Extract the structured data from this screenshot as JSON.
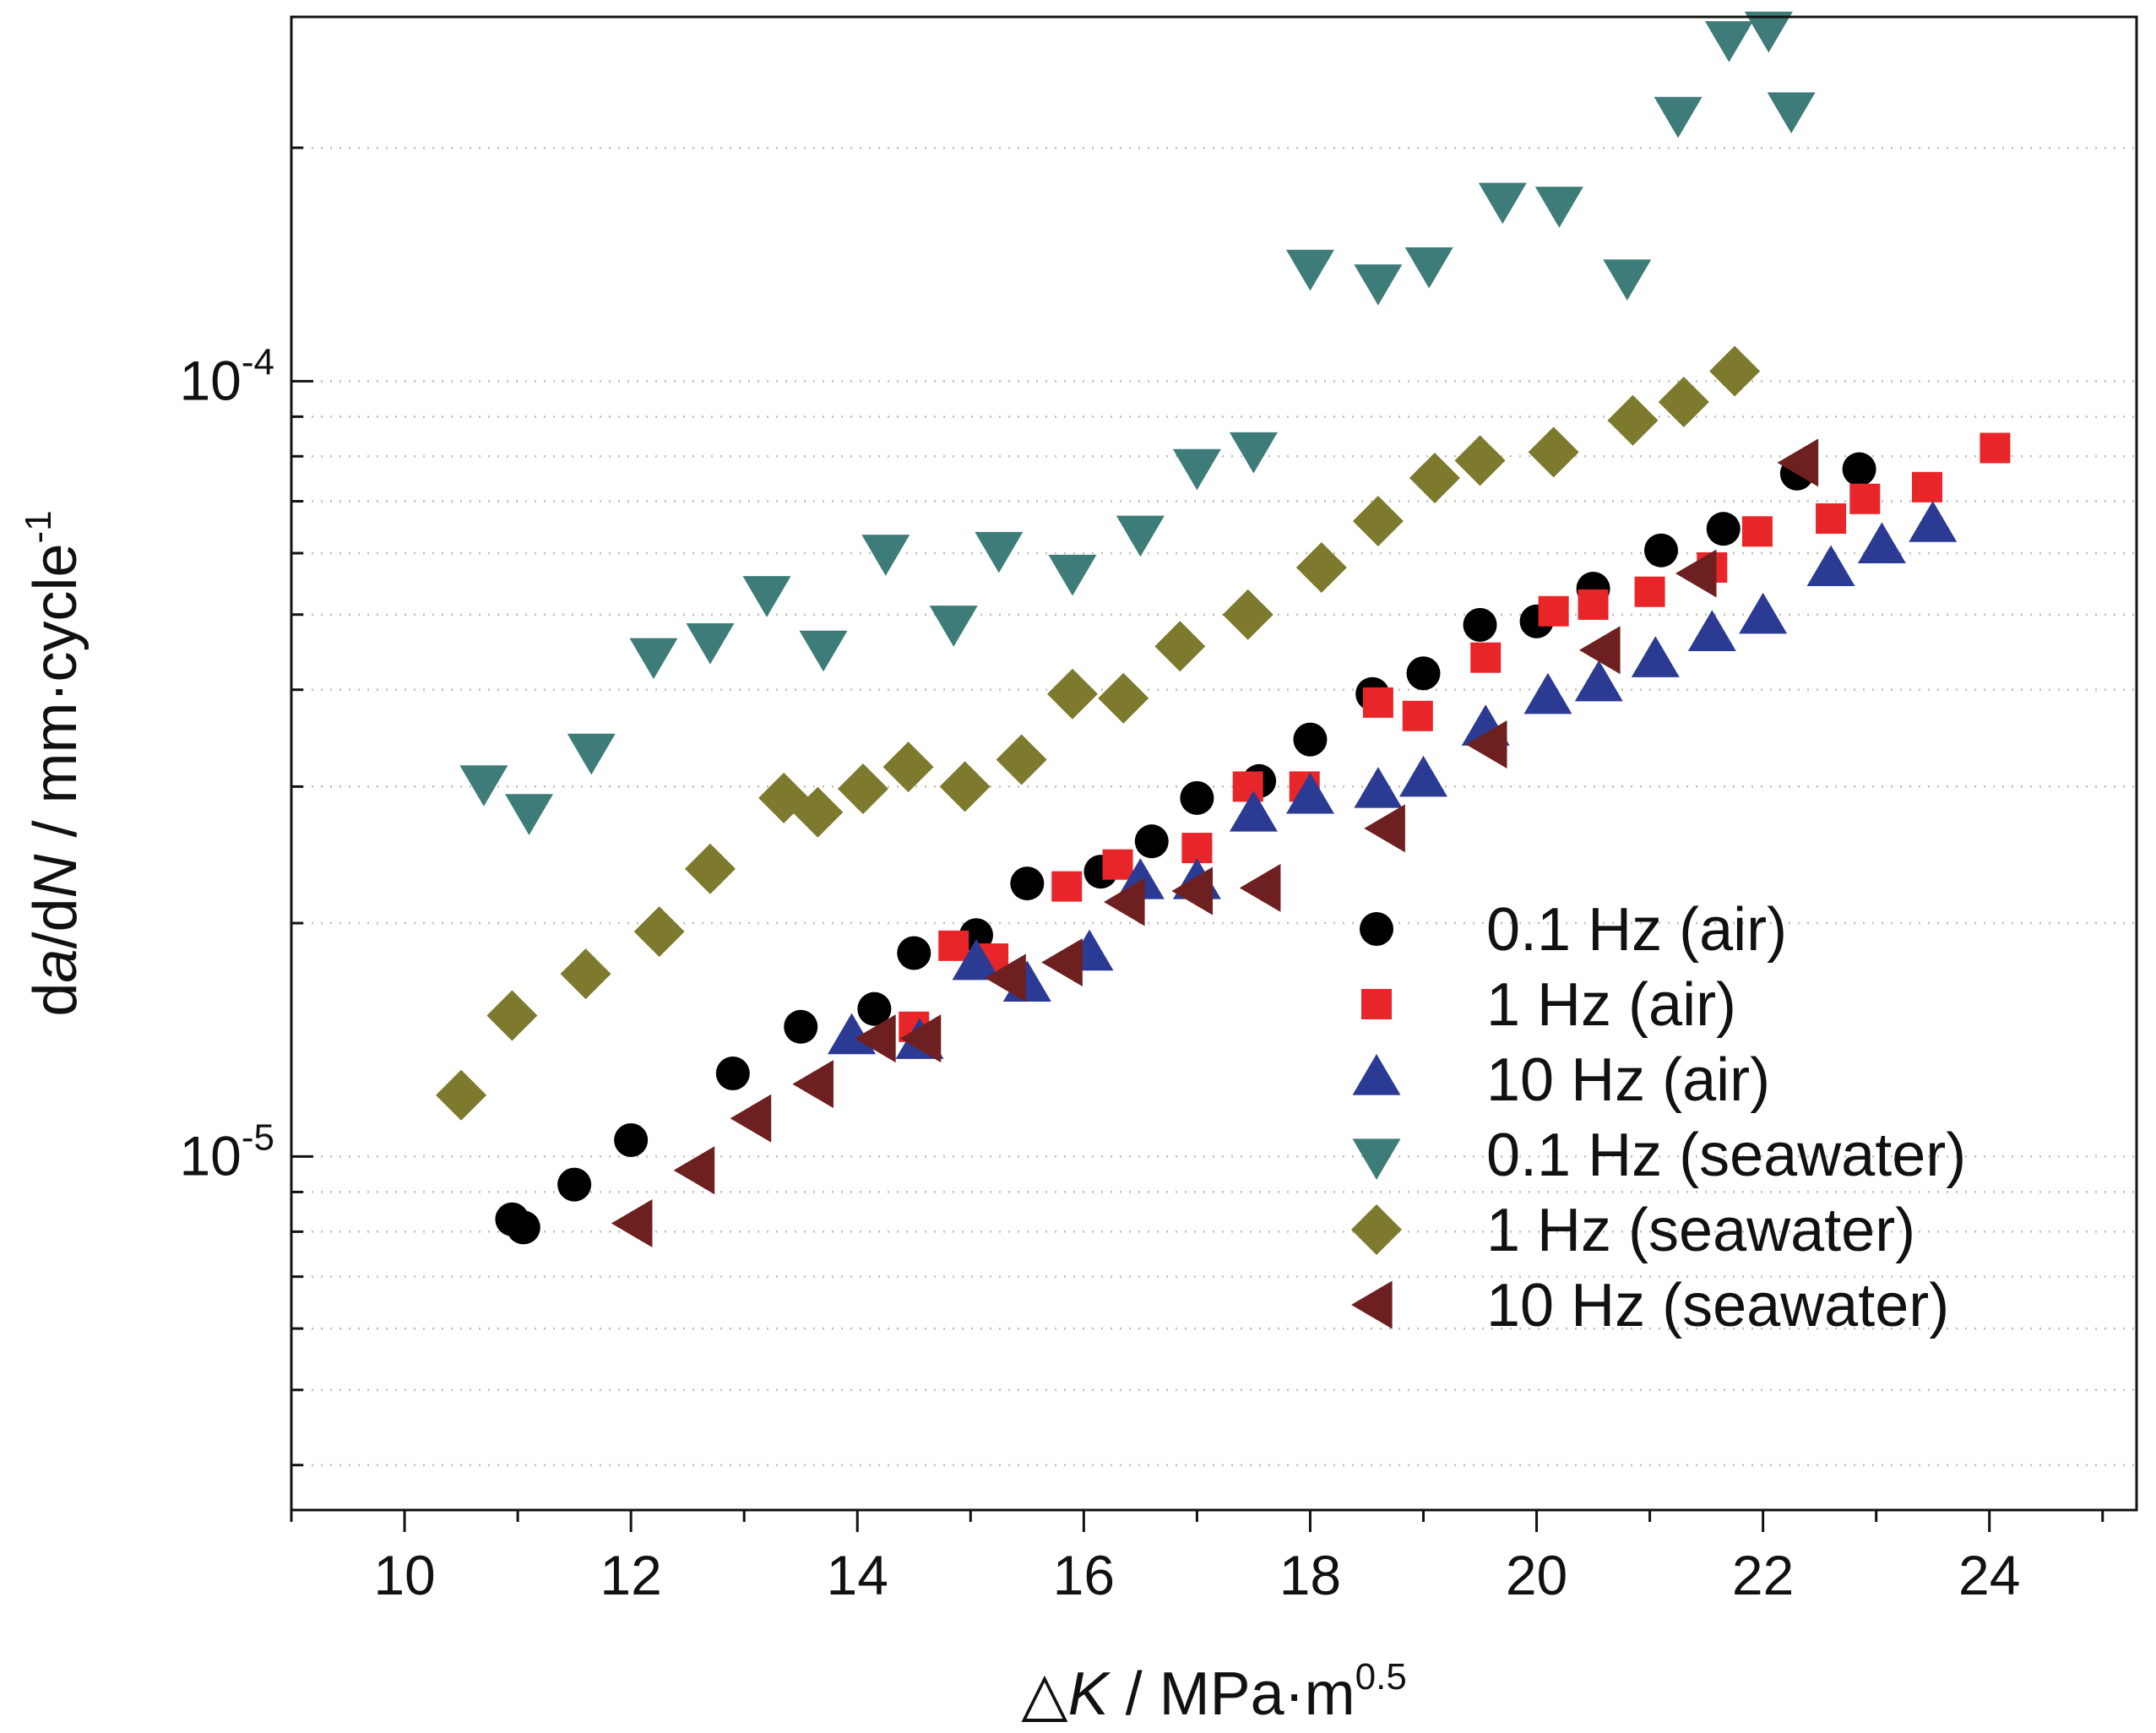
{
  "chart_data": {
    "type": "scatter",
    "title": "",
    "xlabel": {
      "prefix": "△",
      "symbol": "K",
      "unit": " / MPa·m",
      "unit_exp": "0.5"
    },
    "ylabel": {
      "part1": "d",
      "italic1": "a",
      "part2": "/d",
      "italic2": "N",
      "part3": " / mm·cycle",
      "exp": "-1"
    },
    "xlim": [
      9,
      25.3
    ],
    "ylim": [
      3.5e-06,
      0.000295
    ],
    "yscale": "log",
    "grid": "horizontal-dotted",
    "legend_position": "bottom-right",
    "x_ticks": [
      "10",
      "12",
      "14",
      "16",
      "18",
      "20",
      "22",
      "24"
    ],
    "y_ticks": [
      {
        "value": 1e-05,
        "base": "10",
        "exp": "-5"
      },
      {
        "value": 0.0001,
        "base": "10",
        "exp": "-4"
      }
    ],
    "series": [
      {
        "name": "0.1 Hz (air)",
        "marker": "circle",
        "color": "#000000",
        "x": [
          10.95,
          11.05,
          11.5,
          12.0,
          12.9,
          13.5,
          14.15,
          14.5,
          15.05,
          15.5,
          16.15,
          16.6,
          17.0,
          17.55,
          18.0,
          18.55,
          19.0,
          19.5,
          20.0,
          20.5,
          21.1,
          21.65,
          22.3,
          22.85
        ],
        "y": [
          8.3e-06,
          8.1e-06,
          9.2e-06,
          1.05e-05,
          1.28e-05,
          1.47e-05,
          1.55e-05,
          1.83e-05,
          1.93e-05,
          2.25e-05,
          2.33e-05,
          2.55e-05,
          2.9e-05,
          3.05e-05,
          3.45e-05,
          3.95e-05,
          4.2e-05,
          4.85e-05,
          4.9e-05,
          5.4e-05,
          6.05e-05,
          6.45e-05,
          7.6e-05,
          7.7e-05
        ]
      },
      {
        "name": "1 Hz (air)",
        "marker": "square",
        "color": "#e8262a",
        "x": [
          14.5,
          14.85,
          15.2,
          15.85,
          16.3,
          17.0,
          17.45,
          17.95,
          18.6,
          18.95,
          19.55,
          20.15,
          20.5,
          21.0,
          21.55,
          21.95,
          22.6,
          22.9,
          23.45,
          24.05
        ],
        "y": [
          1.47e-05,
          1.87e-05,
          1.8e-05,
          2.23e-05,
          2.38e-05,
          2.5e-05,
          3e-05,
          3e-05,
          3.85e-05,
          3.7e-05,
          4.4e-05,
          5.05e-05,
          5.15e-05,
          5.35e-05,
          5.75e-05,
          6.4e-05,
          6.65e-05,
          7.05e-05,
          7.3e-05,
          8.2e-05
        ]
      },
      {
        "name": "10 Hz (air)",
        "marker": "triangle-up",
        "color": "#2b3a93",
        "x": [
          13.95,
          14.55,
          15.05,
          15.5,
          16.05,
          16.5,
          17.0,
          17.5,
          18.0,
          18.6,
          19.0,
          19.55,
          20.1,
          20.55,
          21.05,
          21.55,
          22.0,
          22.6,
          23.05,
          23.5
        ],
        "y": [
          1.42e-05,
          1.4e-05,
          1.77e-05,
          1.66e-05,
          1.82e-05,
          2.25e-05,
          2.25e-05,
          2.75e-05,
          2.9e-05,
          2.95e-05,
          3.05e-05,
          3.55e-05,
          3.9e-05,
          4.05e-05,
          4.35e-05,
          4.7e-05,
          4.95e-05,
          5.7e-05,
          6.1e-05,
          6.5e-05
        ]
      },
      {
        "name": "0.1 Hz (seawater)",
        "marker": "triangle-down",
        "color": "#3d7c78",
        "x": [
          10.7,
          11.1,
          11.65,
          12.2,
          12.7,
          13.2,
          13.7,
          14.25,
          14.85,
          15.25,
          15.9,
          16.5,
          17.0,
          17.5,
          18.0,
          18.6,
          19.05,
          19.7,
          20.2,
          20.8,
          21.25,
          21.7,
          22.05,
          22.25
        ],
        "y": [
          3.05e-05,
          2.8e-05,
          3.35e-05,
          4.45e-05,
          4.65e-05,
          5.35e-05,
          4.55e-05,
          6.05e-05,
          4.9e-05,
          6.1e-05,
          5.7e-05,
          6.4e-05,
          7.8e-05,
          8.2e-05,
          0.000141,
          0.000135,
          0.000142,
          0.000172,
          0.00017,
          0.000137,
          0.000222,
          0.000278,
          0.000286,
          0.000225
        ]
      },
      {
        "name": "1 Hz (seawater)",
        "marker": "diamond",
        "color": "#7d7a2e",
        "x": [
          10.5,
          10.95,
          11.6,
          12.25,
          12.7,
          13.35,
          13.65,
          14.05,
          14.45,
          14.95,
          15.45,
          15.9,
          16.35,
          16.85,
          17.45,
          18.1,
          18.6,
          19.1,
          19.5,
          20.15,
          20.85,
          21.3,
          21.75
        ],
        "y": [
          1.2e-05,
          1.52e-05,
          1.72e-05,
          1.95e-05,
          2.35e-05,
          2.9e-05,
          2.78e-05,
          2.98e-05,
          3.18e-05,
          3e-05,
          3.25e-05,
          3.95e-05,
          3.9e-05,
          4.55e-05,
          5e-05,
          5.75e-05,
          6.6e-05,
          7.5e-05,
          7.9e-05,
          8.1e-05,
          8.9e-05,
          9.4e-05,
          0.000103
        ]
      },
      {
        "name": "10 Hz (seawater)",
        "marker": "triangle-left",
        "color": "#6e2020",
        "x": [
          12.05,
          12.6,
          13.1,
          13.65,
          14.2,
          14.6,
          15.35,
          15.85,
          16.4,
          17.0,
          17.6,
          18.7,
          19.6,
          20.6,
          21.45,
          22.35
        ],
        "y": [
          8.2e-06,
          9.6e-06,
          1.12e-05,
          1.24e-05,
          1.42e-05,
          1.42e-05,
          1.7e-05,
          1.78e-05,
          2.13e-05,
          2.2e-05,
          2.22e-05,
          2.65e-05,
          3.4e-05,
          4.5e-05,
          5.65e-05,
          7.85e-05
        ]
      }
    ]
  }
}
